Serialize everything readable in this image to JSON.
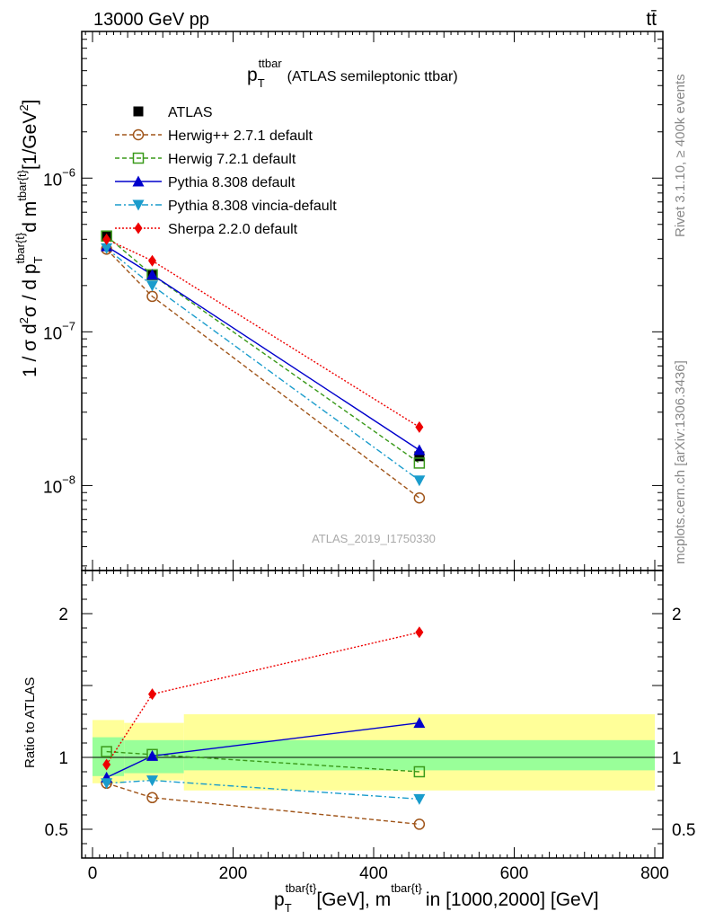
{
  "header": {
    "energy_label": "13000 GeV pp",
    "process_label": "tt̄"
  },
  "side_text": {
    "rivet": "Rivet 3.1.10, ≥ 400k events",
    "mcplots": "mcplots.cern.ch [arXiv:1306.3436]"
  },
  "plot": {
    "title_main": "p",
    "title_sub": "T",
    "title_sup": "ttbar",
    "title_rest": "(ATLAS semileptonic ttbar)",
    "watermark": "ATLAS_2019_I1750330",
    "ylabel_main": "1 / σ d²σ / d p",
    "ylabel_parts": {
      "a": "1 / σ d",
      "b": "2",
      "c": "σ / d p",
      "d": "T",
      "e": "tbar{t}",
      "f": "d m",
      "g": "tbar{t}",
      "h": "[1/GeV",
      "i": "2",
      "j": "]"
    },
    "ratio_ylabel": "Ratio to ATLAS",
    "xlabel_parts": {
      "a": "p",
      "b": "T",
      "c": "tbar{t}",
      "d": "[GeV], m",
      "e": "tbar{t}",
      "f": "in [1000,2000] [GeV]"
    }
  },
  "chart_data": {
    "type": "line",
    "title": "p_T^ttbar (ATLAS semileptonic ttbar)",
    "xlabel": "p_T^{tbar{t}} [GeV], m^{tbar{t}} in [1000,2000] [GeV]",
    "ylabel": "1 / σ d²σ / d p_T^{tbar{t}} d m^{tbar{t}} [1/GeV²]",
    "xlim": [
      -20,
      810
    ],
    "ylim": [
      2.8e-09,
      9e-06
    ],
    "yscale": "log",
    "ratio_ylim": [
      0.3,
      2.3
    ],
    "x_ticks": [
      "0",
      "200",
      "400",
      "600",
      "800"
    ],
    "y_ticks": [
      {
        "base": "10",
        "exp": "−8",
        "value": 1e-08
      },
      {
        "base": "10",
        "exp": "−7",
        "value": 1e-07
      },
      {
        "base": "10",
        "exp": "−6",
        "value": 1e-06
      }
    ],
    "ratio_ticks": [
      {
        "label": "0.5",
        "value": 0.5
      },
      {
        "label": "1",
        "value": 1.0
      },
      {
        "label": "2",
        "value": 2.0
      }
    ],
    "x": [
      20,
      85,
      465
    ],
    "bin_edges": [
      0,
      45,
      130,
      800
    ],
    "band_inner": [
      [
        0.87,
        1.14
      ],
      [
        0.89,
        1.12
      ],
      [
        0.91,
        1.12
      ]
    ],
    "band_outer": [
      [
        0.82,
        1.26
      ],
      [
        0.84,
        1.24
      ],
      [
        0.77,
        1.3
      ]
    ],
    "legend_placement": "top-left",
    "series": [
      {
        "name": "ATLAS",
        "key": "atlas",
        "color": "#000000",
        "dash": "",
        "marker": "square-filled",
        "values": [
          4.2e-07,
          2.35e-07,
          1.55e-08
        ],
        "ratio": [
          1.0,
          1.0,
          1.0
        ]
      },
      {
        "name": "Herwig++ 2.7.1 default",
        "key": "herwigpp",
        "color": "#a0551a",
        "dash": "5,3",
        "marker": "circle-open",
        "values": [
          3.45e-07,
          1.7e-07,
          8.3e-09
        ],
        "ratio": [
          0.82,
          0.72,
          0.535
        ]
      },
      {
        "name": "Herwig 7.2.1 default",
        "key": "herwig7",
        "color": "#3a9a1a",
        "dash": "5,3",
        "marker": "square-open",
        "values": [
          4.2e-07,
          2.35e-07,
          1.4e-08
        ],
        "ratio": [
          1.04,
          1.02,
          0.9
        ]
      },
      {
        "name": "Pythia 8.308 default",
        "key": "pythia",
        "color": "#0000cc",
        "dash": "",
        "marker": "triangle-up",
        "values": [
          3.6e-07,
          2.35e-07,
          1.7e-08
        ],
        "ratio": [
          0.86,
          1.01,
          1.24
        ]
      },
      {
        "name": "Pythia 8.308 vincia-default",
        "key": "vincia",
        "color": "#1a9ccc",
        "dash": "7,3,2,3",
        "marker": "triangle-down",
        "values": [
          3.5e-07,
          2e-07,
          1.08e-08
        ],
        "ratio": [
          0.82,
          0.84,
          0.71
        ]
      },
      {
        "name": "Sherpa 2.2.0 default",
        "key": "sherpa",
        "color": "#ee0000",
        "dash": "2,2",
        "marker": "diamond",
        "values": [
          4e-07,
          2.9e-07,
          2.4e-08
        ],
        "ratio": [
          0.95,
          1.44,
          1.87
        ]
      }
    ]
  }
}
